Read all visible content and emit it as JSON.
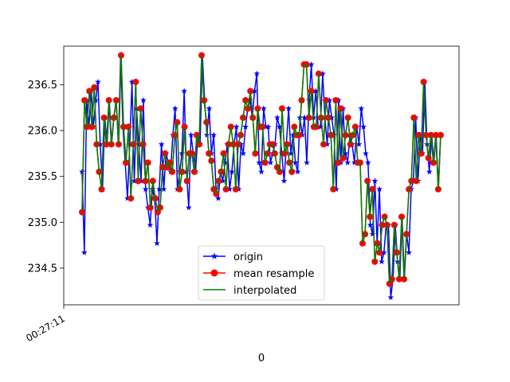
{
  "chart_data": {
    "type": "line",
    "xlabel": "0",
    "x_tick_labels": [
      "00:27:11"
    ],
    "ylim": [
      234.1,
      236.92
    ],
    "y_ticks": [
      234.5,
      235.0,
      235.5,
      236.0,
      236.5
    ],
    "y_tick_labels": [
      "234.5",
      "235.0",
      "235.5",
      "236.0",
      "236.5"
    ],
    "legend": {
      "position": "lower-center",
      "entries": [
        "origin",
        "mean resample",
        "interpolated"
      ]
    },
    "colors": {
      "origin": "#0000ff",
      "mean_resample": "#ff0000",
      "interpolated": "#008000"
    },
    "series": [
      {
        "name": "origin",
        "marker": "star",
        "values": [
          235.55,
          234.67,
          236.33,
          236.04,
          236.43,
          236.04,
          236.33,
          236.53,
          235.85,
          235.36,
          236.14,
          235.85,
          236.33,
          235.85,
          236.14,
          236.33,
          235.85,
          236.82,
          236.04,
          235.65,
          235.26,
          235.85,
          236.53,
          235.45,
          236.24,
          235.85,
          235.45,
          236.33,
          235.36,
          235.16,
          234.97,
          235.36,
          235.26,
          234.77,
          235.36,
          235.85,
          235.36,
          235.75,
          235.65,
          235.55,
          235.95,
          236.24,
          235.36,
          235.55,
          235.75,
          236.43,
          235.55,
          235.16,
          235.95,
          235.75,
          235.55,
          235.95,
          235.85,
          236.82,
          236.33,
          235.95,
          236.24,
          235.75,
          235.95,
          235.36,
          235.26,
          235.55,
          235.45,
          235.65,
          235.85,
          235.36,
          235.55,
          235.85,
          236.04,
          235.36,
          235.85,
          235.75,
          236.04,
          236.24,
          236.33,
          236.14,
          236.43,
          236.62,
          235.65,
          235.55,
          236.24,
          236.04,
          236.04,
          235.65,
          235.75,
          235.85,
          236.14,
          236.04,
          235.75,
          235.45,
          235.85,
          236.24,
          235.75,
          235.95,
          235.65,
          235.55,
          236.14,
          235.95,
          236.14,
          235.65,
          236.33,
          236.72,
          236.14,
          236.43,
          236.04,
          236.04,
          236.62,
          236.14,
          235.85,
          236.33,
          236.14,
          235.95,
          235.36,
          236.33,
          235.65,
          236.24,
          235.75,
          235.65,
          235.95,
          235.85,
          235.65,
          236.04,
          235.85,
          236.24,
          236.04,
          235.75,
          235.65,
          234.97,
          234.87,
          235.45,
          234.77,
          235.36,
          234.57,
          234.67,
          234.97,
          234.97,
          234.18,
          234.38,
          234.97,
          234.57,
          234.38,
          235.06,
          234.38,
          234.87,
          234.67,
          235.36,
          235.45,
          236.14,
          235.45,
          235.95,
          235.75,
          236.53,
          235.85,
          235.55,
          235.95,
          235.65,
          235.95,
          235.36,
          235.95
        ]
      },
      {
        "name": "mean resample",
        "marker": "circle",
        "values": [
          235.11,
          236.33,
          236.04,
          236.43,
          236.04,
          236.47,
          235.85,
          235.55,
          235.36,
          236.14,
          235.85,
          236.33,
          235.85,
          236.14,
          236.33,
          235.85,
          236.82,
          236.04,
          235.65,
          236.04,
          235.26,
          235.85,
          236.53,
          235.45,
          236.24,
          235.85,
          235.45,
          235.65,
          235.16,
          235.45,
          235.26,
          235.11,
          235.16,
          235.6,
          235.75,
          235.6,
          235.65,
          235.55,
          235.95,
          236.09,
          235.36,
          235.55,
          236.04,
          235.45,
          235.75,
          235.75,
          235.55,
          235.95,
          235.85,
          236.82,
          236.33,
          236.09,
          235.75,
          235.67,
          235.36,
          235.31,
          235.45,
          235.55,
          235.75,
          235.36,
          235.85,
          236.04,
          235.85,
          235.36,
          235.85,
          235.95,
          236.14,
          236.33,
          236.24,
          236.43,
          236.14,
          235.75,
          236.24,
          236.04,
          236.04,
          235.65,
          235.75,
          235.85,
          235.85,
          235.75,
          235.6,
          235.55,
          236.24,
          235.75,
          235.85,
          235.65,
          235.55,
          236.04,
          235.95,
          235.95,
          236.33,
          236.72,
          236.72,
          236.14,
          236.43,
          236.04,
          236.04,
          236.62,
          236.14,
          235.85,
          236.33,
          236.14,
          235.95,
          235.36,
          236.33,
          235.65,
          236.24,
          235.7,
          235.95,
          236.14,
          235.85,
          235.95,
          236.04,
          235.65,
          235.65,
          234.77,
          234.87,
          235.45,
          235.06,
          235.36,
          234.57,
          234.77,
          234.67,
          234.97,
          235.06,
          234.97,
          234.33,
          234.38,
          234.97,
          234.67,
          234.38,
          235.06,
          234.38,
          234.87,
          235.36,
          235.45,
          236.14,
          235.45,
          235.95,
          235.75,
          236.53,
          235.95,
          235.7,
          235.95,
          235.65,
          235.95,
          235.36,
          235.95
        ]
      },
      {
        "name": "interpolated",
        "marker": "none",
        "values": [
          235.11,
          236.33,
          236.04,
          236.43,
          236.04,
          236.47,
          235.85,
          235.55,
          235.36,
          236.14,
          235.85,
          236.33,
          235.85,
          236.14,
          236.33,
          235.85,
          236.82,
          236.04,
          235.65,
          236.04,
          235.26,
          235.85,
          236.53,
          235.45,
          236.24,
          235.85,
          235.45,
          235.65,
          235.16,
          235.45,
          235.26,
          235.11,
          235.16,
          235.6,
          235.75,
          235.6,
          235.65,
          235.55,
          235.95,
          236.09,
          235.36,
          235.55,
          236.04,
          235.45,
          235.75,
          235.75,
          235.55,
          235.95,
          235.85,
          236.82,
          236.33,
          236.09,
          235.75,
          235.67,
          235.36,
          235.31,
          235.45,
          235.55,
          235.75,
          235.36,
          235.85,
          236.04,
          235.85,
          235.36,
          235.85,
          235.95,
          236.14,
          236.33,
          236.24,
          236.43,
          236.14,
          235.75,
          236.24,
          236.04,
          236.04,
          235.65,
          235.75,
          235.85,
          235.85,
          235.75,
          235.6,
          235.55,
          236.24,
          235.75,
          235.85,
          235.65,
          235.55,
          236.04,
          235.95,
          235.95,
          236.33,
          236.72,
          236.72,
          236.14,
          236.43,
          236.04,
          236.04,
          236.62,
          236.14,
          235.85,
          236.33,
          236.14,
          235.95,
          235.36,
          236.33,
          235.65,
          236.24,
          235.7,
          235.95,
          236.14,
          235.85,
          235.95,
          236.04,
          235.65,
          235.65,
          234.77,
          234.87,
          235.45,
          235.06,
          235.36,
          234.57,
          234.77,
          234.67,
          234.97,
          235.06,
          234.97,
          234.33,
          234.38,
          234.97,
          234.67,
          234.38,
          235.06,
          234.38,
          234.87,
          235.36,
          235.45,
          236.14,
          235.45,
          235.95,
          235.75,
          236.53,
          235.95,
          235.7,
          235.95,
          235.65,
          235.95,
          235.36,
          235.95
        ]
      }
    ]
  }
}
